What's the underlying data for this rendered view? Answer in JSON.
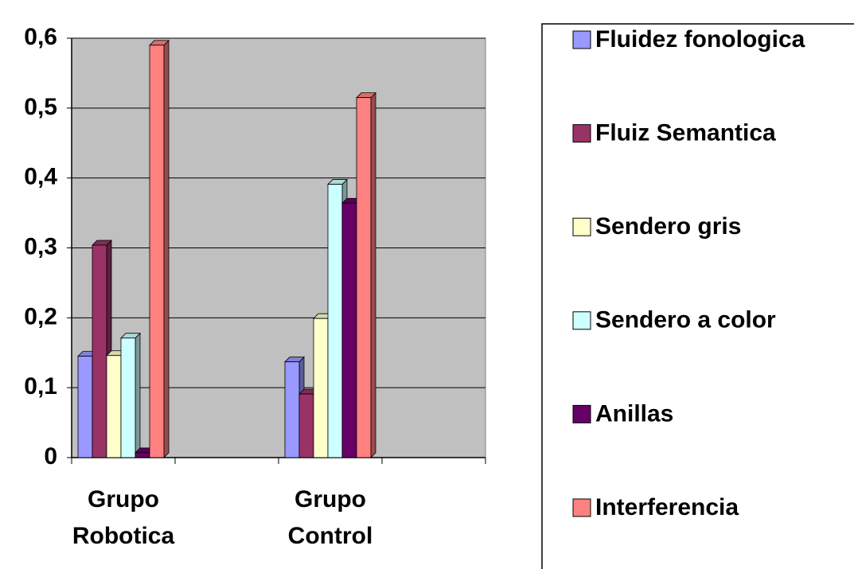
{
  "chart_data": {
    "type": "bar",
    "categories": [
      "Grupo Robotica",
      "Grupo Control"
    ],
    "series": [
      {
        "name": "Fluidez fonologica",
        "color": "#9999ff",
        "values": [
          0.145,
          0.137
        ]
      },
      {
        "name": "Fluiz Semantica",
        "color": "#993366",
        "values": [
          0.304,
          0.091
        ]
      },
      {
        "name": "Sendero gris",
        "color": "#ffffcc",
        "values": [
          0.146,
          0.199
        ]
      },
      {
        "name": "Sendero a color",
        "color": "#ccffff",
        "values": [
          0.171,
          0.391
        ]
      },
      {
        "name": "Anillas",
        "color": "#660066",
        "values": [
          0.007,
          0.364
        ]
      },
      {
        "name": "Interferencia",
        "color": "#ff8080",
        "values": [
          0.59,
          0.515
        ]
      }
    ],
    "ylim": [
      0,
      0.6
    ],
    "yticks": [
      0,
      {
        "value": 0.1,
        "label": "0,1"
      },
      {
        "value": 0.2,
        "label": "0,2"
      },
      {
        "value": 0.3,
        "label": "0,3"
      },
      {
        "value": 0.4,
        "label": "0,4"
      },
      {
        "value": 0.5,
        "label": "0,5"
      },
      {
        "value": 0.6,
        "label": "0,6"
      }
    ],
    "grid": true,
    "legend": "right"
  }
}
